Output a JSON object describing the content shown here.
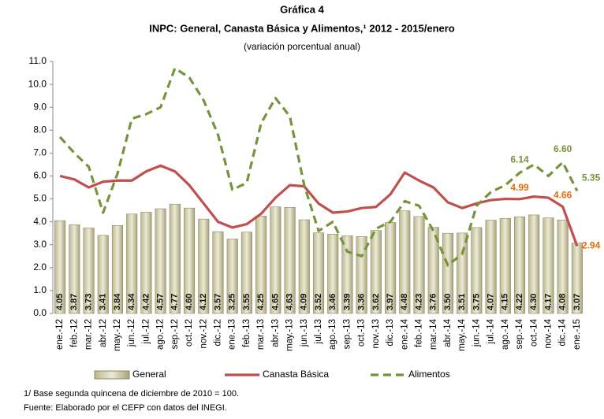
{
  "chart_data": {
    "type": "bar_line",
    "title": "Gráfica 4",
    "subtitle": "INPC: General, Canasta Básica y Alimentos,¹ 2012 - 2015/enero",
    "units": "(variación porcentual anual)",
    "footnotes": [
      "1/ Base segunda quincena de diciembre de 2010 = 100.",
      "Fuente: Elaborado por el CEFP con datos del INEGI."
    ],
    "categories": [
      "ene.-12",
      "feb.-12",
      "mar.-12",
      "abr.-12",
      "may.-12",
      "jun.-12",
      "jul.-12",
      "ago.-12",
      "sep.-12",
      "oct.-12",
      "nov.-12",
      "dic.-12",
      "ene.-13",
      "feb.-13",
      "mar.-13",
      "abr.-13",
      "may.-13",
      "jun.-13",
      "jul.-13",
      "ago.-13",
      "sep.-13",
      "oct.-13",
      "nov.-13",
      "dic.-13",
      "ene.-14",
      "feb.-14",
      "mar.-14",
      "abr.-14",
      "may.-14",
      "jun.-14",
      "jul.-14",
      "ago.-14",
      "sep.-14",
      "oct.-14",
      "nov.-14",
      "dic.-14",
      "ene.-15"
    ],
    "ylim": [
      0,
      11
    ],
    "yticks": [
      {
        "value": 0,
        "label": "0.0"
      },
      {
        "value": 1,
        "label": "1.0"
      },
      {
        "value": 2,
        "label": "2.0"
      },
      {
        "value": 3,
        "label": "3.0"
      },
      {
        "value": 4,
        "label": "4.0"
      },
      {
        "value": 5,
        "label": "5.0"
      },
      {
        "value": 6,
        "label": "6.0"
      },
      {
        "value": 7,
        "label": "7.0"
      },
      {
        "value": 8,
        "label": "8.0"
      },
      {
        "value": 9,
        "label": "9.0"
      },
      {
        "value": 10,
        "label": "10.0"
      },
      {
        "value": 11,
        "label": "11.0"
      }
    ],
    "series": [
      {
        "name": "General",
        "kind": "bar",
        "color": "#c9c49c",
        "values": [
          4.05,
          3.87,
          3.73,
          3.41,
          3.84,
          4.34,
          4.42,
          4.57,
          4.77,
          4.6,
          4.12,
          3.57,
          3.25,
          3.55,
          4.25,
          4.65,
          4.63,
          4.09,
          3.52,
          3.46,
          3.39,
          3.36,
          3.62,
          3.97,
          4.48,
          4.23,
          3.76,
          3.5,
          3.51,
          3.75,
          4.07,
          4.15,
          4.22,
          4.3,
          4.17,
          4.08,
          3.07
        ],
        "value_labels": [
          "4.05",
          "3.87",
          "3.73",
          "3.41",
          "3.84",
          "4.34",
          "4.42",
          "4.57",
          "4.77",
          "4.60",
          "4.12",
          "3.57",
          "3.25",
          "3.55",
          "4.25",
          "4.65",
          "4.63",
          "4.09",
          "3.52",
          "3.46",
          "3.39",
          "3.36",
          "3.62",
          "3.97",
          "4.48",
          "4.23",
          "3.76",
          "3.50",
          "3.51",
          "3.75",
          "4.07",
          "4.15",
          "4.22",
          "4.30",
          "4.17",
          "4.08",
          "3.07"
        ]
      },
      {
        "name": "Canasta Básica",
        "kind": "line",
        "color": "#c0504d",
        "label_color": "#e46c0a",
        "values": [
          6.0,
          5.85,
          5.5,
          5.75,
          5.8,
          5.8,
          6.2,
          6.45,
          6.2,
          5.6,
          4.8,
          4.0,
          3.75,
          3.9,
          4.35,
          5.05,
          5.6,
          5.55,
          4.8,
          4.4,
          4.45,
          4.6,
          4.65,
          5.2,
          6.15,
          5.8,
          5.5,
          4.85,
          4.6,
          4.8,
          4.95,
          5.0,
          4.99,
          5.1,
          5.05,
          4.66,
          2.94
        ],
        "value_labels": [
          null,
          null,
          null,
          null,
          null,
          null,
          null,
          null,
          null,
          null,
          null,
          null,
          null,
          null,
          null,
          null,
          null,
          null,
          null,
          null,
          null,
          null,
          null,
          null,
          null,
          null,
          null,
          null,
          null,
          null,
          null,
          null,
          "4.99",
          null,
          null,
          "4.66",
          "2.94"
        ]
      },
      {
        "name": "Alimentos",
        "kind": "dashed",
        "color": "#77933c",
        "label_color": "#77933c",
        "values": [
          7.7,
          7.0,
          6.4,
          4.4,
          6.1,
          8.5,
          8.7,
          9.0,
          10.7,
          10.3,
          9.3,
          7.8,
          5.4,
          5.7,
          8.3,
          9.4,
          8.6,
          5.6,
          3.6,
          4.0,
          2.7,
          2.5,
          3.7,
          4.0,
          4.9,
          4.7,
          3.6,
          2.1,
          2.6,
          4.7,
          5.3,
          5.6,
          6.14,
          6.5,
          6.0,
          6.6,
          5.35
        ],
        "value_labels": [
          null,
          null,
          null,
          null,
          null,
          null,
          null,
          null,
          null,
          null,
          null,
          null,
          null,
          null,
          null,
          null,
          null,
          null,
          null,
          null,
          null,
          null,
          null,
          null,
          null,
          null,
          null,
          null,
          null,
          null,
          null,
          null,
          "6.14",
          null,
          null,
          "6.60",
          "5.35"
        ]
      }
    ]
  }
}
